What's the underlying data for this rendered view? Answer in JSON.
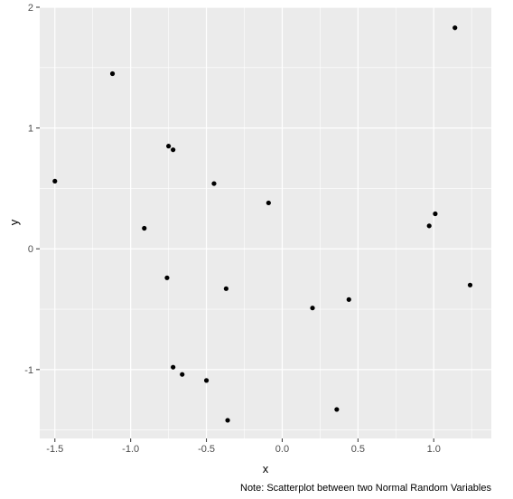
{
  "chart_data": {
    "type": "scatter",
    "title": "",
    "xlabel": "x",
    "ylabel": "y",
    "caption": "Note: Scatterplot between two Normal Random Variables",
    "xlim": [
      -1.6,
      1.38
    ],
    "ylim": [
      -1.57,
      2.0
    ],
    "x_ticks": [
      -1.5,
      -1.0,
      -0.5,
      0.0,
      0.5,
      1.0
    ],
    "x_tick_labels": [
      "-1.5",
      "-1.0",
      "-0.5",
      "0.0",
      "0.5",
      "1.0"
    ],
    "y_ticks": [
      -1,
      0,
      1,
      2
    ],
    "y_tick_labels": [
      "-1",
      "0",
      "1",
      "2"
    ],
    "grid": true,
    "legend": "none",
    "colors": {
      "panel": "#ebebeb",
      "grid_major": "#ffffff",
      "point": "#000000",
      "tick": "#333333"
    },
    "points": [
      {
        "x": -1.5,
        "y": 0.56
      },
      {
        "x": -1.12,
        "y": 1.45
      },
      {
        "x": -0.91,
        "y": 0.17
      },
      {
        "x": -0.75,
        "y": 0.85
      },
      {
        "x": -0.72,
        "y": 0.82
      },
      {
        "x": -0.76,
        "y": -0.24
      },
      {
        "x": -0.72,
        "y": -0.98
      },
      {
        "x": -0.66,
        "y": -1.04
      },
      {
        "x": -0.5,
        "y": -1.09
      },
      {
        "x": -0.45,
        "y": 0.54
      },
      {
        "x": -0.37,
        "y": -0.33
      },
      {
        "x": -0.36,
        "y": -1.42
      },
      {
        "x": -0.09,
        "y": 0.38
      },
      {
        "x": 0.2,
        "y": -0.49
      },
      {
        "x": 0.36,
        "y": -1.33
      },
      {
        "x": 0.44,
        "y": -0.42
      },
      {
        "x": 0.97,
        "y": 0.19
      },
      {
        "x": 1.01,
        "y": 0.29
      },
      {
        "x": 1.14,
        "y": 1.83
      },
      {
        "x": 1.24,
        "y": -0.3
      }
    ]
  }
}
